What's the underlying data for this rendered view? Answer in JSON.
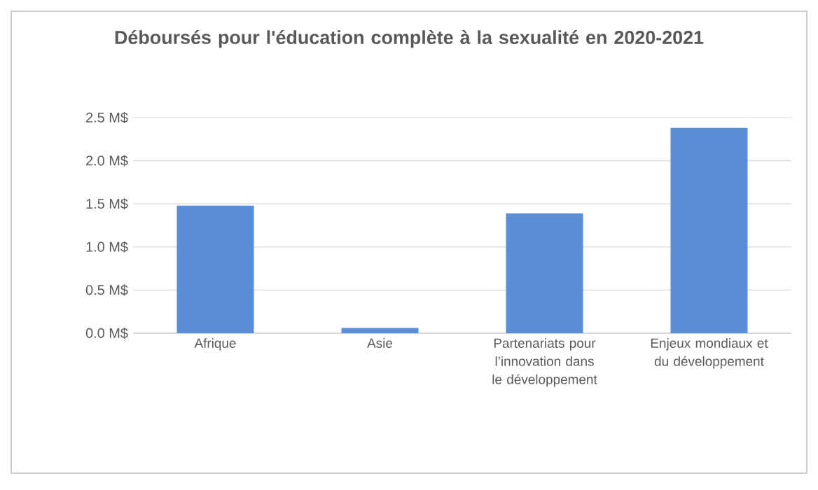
{
  "chart_data": {
    "type": "bar",
    "title": "Déboursés pour l'éducation complète à la sexualité en 2020-2021",
    "categories": [
      "Afrique",
      "Asie",
      "Partenariats pour l’innovation dans le développement",
      "Enjeux mondiaux et du développement"
    ],
    "values": [
      1.48,
      0.06,
      1.39,
      2.38
    ],
    "color": "#5b8ed6",
    "ylim": [
      0,
      2.5
    ],
    "yticks": [
      {
        "value": 0,
        "label": "0.0 M$"
      },
      {
        "value": 0.5,
        "label": "0.5 M$"
      },
      {
        "value": 1.0,
        "label": "1.0 M$"
      },
      {
        "value": 1.5,
        "label": "1.5 M$"
      },
      {
        "value": 2.0,
        "label": "2.0 M$"
      },
      {
        "value": 2.5,
        "label": "2.5 M$"
      }
    ],
    "grid": "y"
  }
}
